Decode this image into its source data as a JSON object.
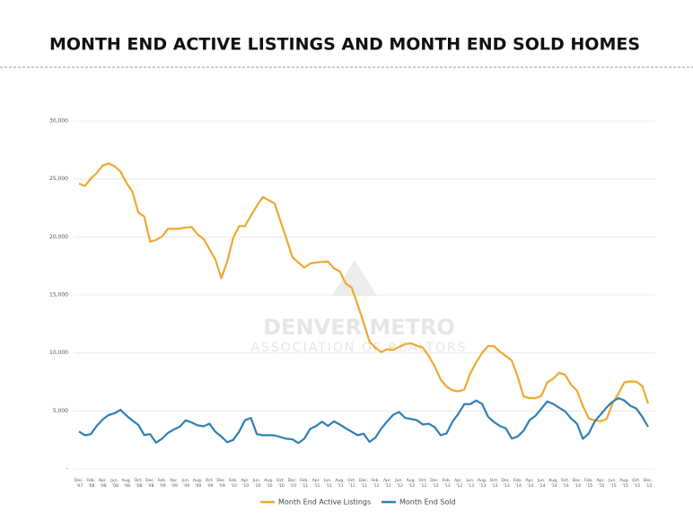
{
  "header": {
    "title": "MONTH END ACTIVE LISTINGS AND MONTH END SOLD HOMES"
  },
  "chart_data": {
    "type": "line",
    "watermark": [
      "DENVER METRO",
      "ASSOCIATION OF REALTORS"
    ],
    "categories": [
      "Dec. '07",
      null,
      "Feb. '08",
      null,
      "Apr. '08",
      null,
      "Jun. '08",
      null,
      "Aug. '08",
      null,
      "Oct. '08",
      null,
      "Dec. '08",
      null,
      "Feb. '09",
      null,
      "Apr. '09",
      null,
      "Jun. '09",
      null,
      "Aug. '09",
      null,
      "Oct. '09",
      null,
      "Dec. '09",
      null,
      "Feb. '10",
      null,
      "Apr. '10",
      null,
      "Jun. '10",
      null,
      "Aug. '10",
      null,
      "Oct. '10",
      null,
      "Dec. '10",
      null,
      "Feb. '11",
      null,
      "Apr. '11",
      null,
      "Jun. '11",
      null,
      "Aug. '11",
      null,
      "Oct. '11",
      null,
      "Dec. '11",
      null,
      "Feb. '12",
      null,
      "Apr. '12",
      null,
      "Jun. '12",
      null,
      "Aug. '12",
      null,
      "Oct. '12",
      null,
      "Dec. '12",
      null,
      "Feb. '13",
      null,
      "Apr. '13",
      null,
      "Jun. '13",
      null,
      "Aug. '13",
      null,
      "Oct. '13",
      null,
      "Dec. '13",
      null,
      "Feb. '14",
      null,
      "Apr. '14",
      null,
      "Jun. '14",
      null,
      "Aug. '14",
      null,
      "Oct. '14",
      null,
      "Dec. '14",
      null,
      "Feb. '15",
      null,
      "Apr. '15",
      null,
      "Jun. '15",
      null,
      "Aug. '15",
      null,
      "Oct. '15",
      null,
      "Dec. '15"
    ],
    "series": [
      {
        "name": "Month End Active Listings",
        "color": "#f0a830",
        "values": [
          24603,
          24400,
          25037,
          25516,
          26171,
          26343,
          26104,
          25648,
          24673,
          23923,
          22120,
          21763,
          19600,
          19748,
          20028,
          20705,
          20705,
          20734,
          20815,
          20860,
          20228,
          19834,
          18956,
          18061,
          16456,
          17865,
          19899,
          20928,
          20943,
          21833,
          22689,
          23450,
          23166,
          22889,
          21360,
          19841,
          18257,
          17800,
          17358,
          17707,
          17807,
          17847,
          17880,
          17300,
          17036,
          15983,
          15631,
          14156,
          12634,
          10993,
          10441,
          10080,
          10325,
          10264,
          10521,
          10757,
          10827,
          10626,
          10470,
          9719,
          8847,
          7706,
          7094,
          6784,
          6682,
          6845,
          8234,
          9187,
          10001,
          10587,
          10588,
          10108,
          9731,
          9352,
          7946,
          6238,
          6103,
          6098,
          6306,
          7479,
          7781,
          8297,
          8119,
          7256,
          6748,
          5420,
          4355,
          4171,
          4112,
          4300,
          5657,
          6500,
          7470,
          7537,
          7516,
          7156,
          5633
        ]
      },
      {
        "name": "Month End  Sold",
        "color": "#2e7fb8",
        "values": [
          3223,
          2900,
          3001,
          3709,
          4266,
          4647,
          4800,
          5100,
          4600,
          4173,
          3800,
          2920,
          3000,
          2258,
          2600,
          3100,
          3400,
          3639,
          4188,
          4000,
          3761,
          3666,
          3900,
          3200,
          2800,
          2300,
          2500,
          3200,
          4200,
          4400,
          3000,
          2900,
          2912,
          2889,
          2745,
          2600,
          2553,
          2231,
          2600,
          3451,
          3700,
          4066,
          3700,
          4100,
          3826,
          3500,
          3200,
          2900,
          3037,
          2332,
          2700,
          3484,
          4100,
          4667,
          4899,
          4400,
          4302,
          4200,
          3824,
          3900,
          3600,
          2900,
          3057,
          4070,
          4762,
          5591,
          5581,
          5900,
          5600,
          4500,
          4040,
          3700,
          3500,
          2617,
          2800,
          3300,
          4200,
          4583,
          5200,
          5818,
          5597,
          5268,
          4962,
          4358,
          3900,
          2590,
          3060,
          4100,
          4700,
          5300,
          5800,
          6100,
          5900,
          5441,
          5211,
          4500,
          3634
        ]
      }
    ],
    "ylim": [
      0,
      30000
    ],
    "yticks": [
      {
        "value": 0,
        "label": "-"
      },
      {
        "value": 5000,
        "label": "5,000"
      },
      {
        "value": 10000,
        "label": "10,000"
      },
      {
        "value": 15000,
        "label": "15,000"
      },
      {
        "value": 20000,
        "label": "20,000"
      },
      {
        "value": 25000,
        "label": "25,000"
      },
      {
        "value": 30000,
        "label": "30,000"
      }
    ],
    "grid": true,
    "legend": "bottom"
  }
}
